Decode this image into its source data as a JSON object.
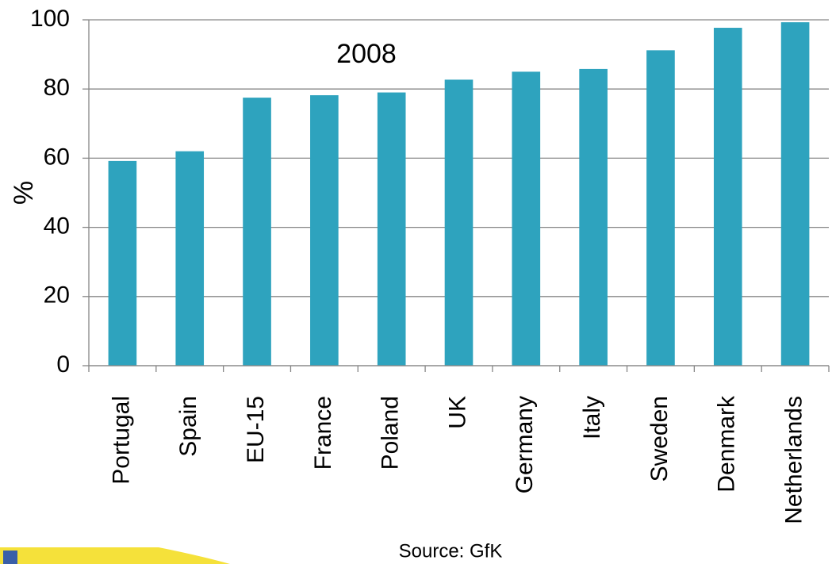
{
  "chart_data": {
    "type": "bar",
    "title": "2008",
    "y_label": "%",
    "source": "Source: GfK",
    "categories": [
      "Portugal",
      "Spain",
      "EU-15",
      "France",
      "Poland",
      "UK",
      "Germany",
      "Italy",
      "Sweden",
      "Denmark",
      "Netherlands"
    ],
    "values": [
      59.2,
      62,
      77.5,
      78.2,
      79,
      82.7,
      85,
      85.8,
      91.2,
      97.7,
      99.3
    ],
    "color": "#2ea3be",
    "ylim": [
      0,
      100
    ],
    "yticks": [
      0,
      20,
      40,
      60,
      80,
      100
    ],
    "grid": true
  }
}
